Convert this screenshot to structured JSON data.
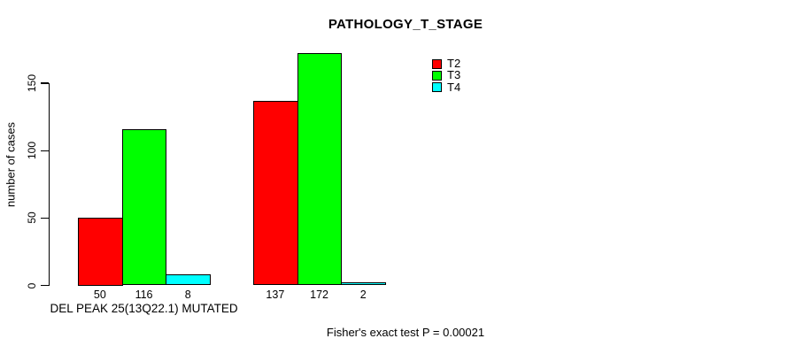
{
  "chart_data": {
    "type": "bar",
    "title": "PATHOLOGY_T_STAGE",
    "ylabel": "number of cases",
    "xlabel": "",
    "categories": [
      "DEL PEAK 25(13Q22.1) MUTATED",
      ""
    ],
    "series": [
      {
        "name": "T2",
        "color": "#FF0000",
        "values": [
          50,
          137
        ]
      },
      {
        "name": "T3",
        "color": "#00FF00",
        "values": [
          116,
          172
        ]
      },
      {
        "name": "T4",
        "color": "#00FFFF",
        "values": [
          8,
          2
        ]
      }
    ],
    "yticks": [
      0,
      50,
      100,
      150
    ],
    "ylim": [
      0,
      172
    ],
    "grid": false,
    "show_bar_values": true,
    "legend_position": "top-right",
    "annotation": "Fisher's exact test P = 0.00021",
    "bar_border_color": "#000000",
    "axis_color": "#000000",
    "text_color": "#000000",
    "background_color": "#FFFFFF"
  }
}
